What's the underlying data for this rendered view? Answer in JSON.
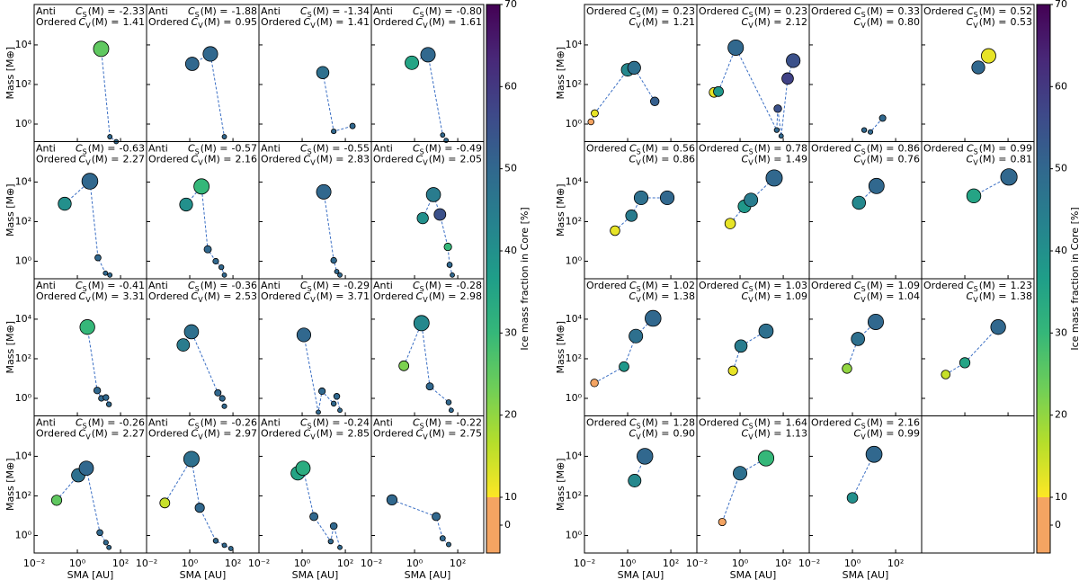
{
  "chart_data": [
    {
      "type": "scatter",
      "xlabel": "SMA [AU]",
      "ylabel": "Mass [M⊕]",
      "xscale": "log",
      "yscale": "log",
      "xlim": [
        0.01,
        1600
      ],
      "ylim": [
        0.13,
        1100000
      ],
      "xticks": [
        {
          "value": 0.01,
          "label": "10⁻²"
        },
        {
          "value": 1,
          "label": "10⁰"
        },
        {
          "value": 100,
          "label": "10²"
        }
      ],
      "yticks": [
        {
          "value": 1,
          "label": "10⁰"
        },
        {
          "value": 100,
          "label": "10²"
        },
        {
          "value": 10000,
          "label": "10⁴"
        }
      ],
      "colorbar_label": "Ice mass fraction in Core [%]",
      "colormap": "viridis_r",
      "clim": [
        -10,
        70
      ],
      "under_threshold": 10,
      "under_color": "#f4a462",
      "cticks": [
        0,
        10,
        20,
        30,
        40,
        50,
        60,
        70
      ],
      "c_symbol": "C",
      "cs_sub": "S",
      "cv_sub": "V",
      "c_arg": "(M) =",
      "panels": [
        {
          "labels": [
            "Anti",
            "Ordered"
          ],
          "cs": -2.33,
          "cv": 1.41,
          "sma": [
            12.6,
            32,
            63
          ],
          "mass": [
            6300,
            0.23,
            0.13
          ],
          "ice": [
            25,
            50,
            50
          ]
        },
        {
          "labels": [
            "Anti",
            "Ordered"
          ],
          "cs": -1.88,
          "cv": 0.95,
          "sma": [
            1.3,
            9,
            40
          ],
          "mass": [
            1100,
            3500,
            0.23
          ],
          "ice": [
            50,
            50,
            50
          ]
        },
        {
          "labels": [
            "Anti",
            "Ordered"
          ],
          "cs": -1.34,
          "cv": 1.41,
          "sma": [
            9,
            29,
            215
          ],
          "mass": [
            400,
            0.43,
            0.8
          ],
          "ice": [
            48,
            50,
            50
          ]
        },
        {
          "labels": [
            "Anti",
            "Ordered"
          ],
          "cs": {
            "value": -0.8,
            "label": "-0.80"
          },
          "cv": 1.61,
          "sma": [
            0.75,
            4.2,
            20,
            29
          ],
          "mass": [
            1250,
            3200,
            0.28,
            0.15
          ],
          "ice": [
            35,
            50,
            50,
            50
          ]
        },
        {
          "labels": [
            "Anti",
            "Ordered"
          ],
          "cs": -0.63,
          "cv": 2.27,
          "sma": [
            0.26,
            3.8,
            9,
            20,
            32
          ],
          "mass": [
            800,
            11000,
            1.5,
            0.25,
            0.2
          ],
          "ice": [
            40,
            50,
            50,
            50,
            50
          ]
        },
        {
          "labels": [
            "Anti",
            "Ordered"
          ],
          "cs": -0.57,
          "cv": 2.16,
          "sma": [
            0.68,
            3.5,
            6.8,
            16,
            29,
            40
          ],
          "mass": [
            730,
            6000,
            4,
            1,
            0.5,
            0.2
          ],
          "ice": [
            40,
            30,
            50,
            50,
            50,
            50
          ]
        },
        {
          "labels": [
            "Anti",
            "Ordered"
          ],
          "cs": -0.55,
          "cv": 2.83,
          "sma": [
            10,
            29,
            40,
            56
          ],
          "mass": [
            3200,
            1.1,
            0.3,
            0.2
          ],
          "ice": [
            50,
            50,
            50,
            50
          ]
        },
        {
          "labels": [
            "Anti",
            "Ordered"
          ],
          "cs": -0.49,
          "cv": 2.05,
          "sma": [
            2.4,
            7.5,
            15,
            35,
            42,
            56
          ],
          "mass": [
            150,
            2300,
            230,
            5.3,
            0.66,
            0.2
          ],
          "ice": [
            40,
            45,
            55,
            30,
            50,
            50
          ]
        },
        {
          "labels": [
            "Anti",
            "Ordered"
          ],
          "cs": -0.41,
          "cv": 3.31,
          "sma": [
            2.9,
            8.3,
            13,
            21,
            29
          ],
          "mass": [
            4000,
            2.5,
            1,
            1.1,
            0.5
          ],
          "ice": [
            30,
            50,
            50,
            50,
            50
          ]
        },
        {
          "labels": [
            "Anti",
            "Ordered"
          ],
          "cs": -0.36,
          "cv": 2.53,
          "sma": [
            0.5,
            1.2,
            20,
            32,
            40
          ],
          "mass": [
            500,
            2300,
            1.9,
            1,
            0.4
          ],
          "ice": [
            45,
            48,
            50,
            50,
            50
          ]
        },
        {
          "labels": [
            "Anti",
            "Ordered"
          ],
          "cs": -0.29,
          "cv": 3.71,
          "sma": [
            1.2,
            5.6,
            8.3,
            29,
            40,
            56
          ],
          "mass": [
            1600,
            0.2,
            2.3,
            0.54,
            1.26,
            0.25
          ],
          "ice": [
            50,
            50,
            50,
            50,
            50,
            50
          ]
        },
        {
          "labels": [
            "Anti",
            "Ordered"
          ],
          "cs": -0.28,
          "cv": 2.98,
          "sma": [
            0.32,
            2.1,
            5.1,
            38,
            50
          ],
          "mass": [
            44,
            6300,
            4,
            0.63,
            0.25
          ],
          "ice": [
            22,
            42,
            50,
            50,
            50
          ]
        },
        {
          "labels": [
            "Anti",
            "Ordered"
          ],
          "cs": -0.26,
          "cv": 2.27,
          "sma": [
            0.11,
            1.1,
            2.6,
            11,
            21,
            29
          ],
          "mass": [
            60,
            1100,
            2500,
            1.4,
            0.44,
            0.25
          ],
          "ice": [
            25,
            48,
            50,
            50,
            50,
            50
          ]
        },
        {
          "labels": [
            "Anti",
            "Ordered"
          ],
          "cs": -0.26,
          "cv": 2.97,
          "sma": [
            0.07,
            1.2,
            2.9,
            16,
            40,
            80
          ],
          "mass": [
            44,
            7300,
            25,
            0.54,
            0.32,
            0.22
          ],
          "ice": [
            15,
            48,
            50,
            50,
            50,
            50
          ]
        },
        {
          "labels": [
            "Anti",
            "Ordered"
          ],
          "cs": -0.24,
          "cv": 2.85,
          "sma": [
            0.63,
            1.1,
            3.5,
            21,
            29,
            56
          ],
          "mass": [
            1400,
            2500,
            9,
            0.5,
            3,
            0.25
          ],
          "ice": [
            35,
            33,
            50,
            50,
            50,
            50
          ]
        },
        {
          "labels": [
            "Anti",
            "Ordered"
          ],
          "cs": -0.22,
          "cv": 2.75,
          "sma": [
            0.09,
            10,
            20,
            38
          ],
          "mass": [
            63,
            9,
            0.72,
            0.35
          ],
          "ice": [
            50,
            50,
            50,
            50
          ]
        }
      ]
    },
    {
      "type": "scatter",
      "xlabel": "SMA [AU]",
      "ylabel": "Mass [M⊕]",
      "xscale": "log",
      "yscale": "log",
      "xlim": [
        0.01,
        1600
      ],
      "ylim": [
        0.13,
        1100000
      ],
      "xticks": [
        {
          "value": 0.01,
          "label": "10⁻²"
        },
        {
          "value": 1,
          "label": "10⁰"
        },
        {
          "value": 100,
          "label": "10²"
        }
      ],
      "yticks": [
        {
          "value": 1,
          "label": "10⁰"
        },
        {
          "value": 100,
          "label": "10²"
        },
        {
          "value": 10000,
          "label": "10⁴"
        }
      ],
      "colorbar_label": "Ice mass fraction in Core [%]",
      "colormap": "viridis_r",
      "clim": [
        -10,
        70
      ],
      "under_threshold": 10,
      "under_color": "#f4a462",
      "cticks": [
        0,
        10,
        20,
        30,
        40,
        50,
        60,
        70
      ],
      "c_symbol": "C",
      "cs_sub": "S",
      "cv_sub": "V",
      "c_arg": "(M) =",
      "panels": [
        {
          "labels": [
            "Ordered"
          ],
          "cs": 0.23,
          "cv": 1.21,
          "sma": [
            0.02,
            0.03,
            1,
            2,
            18
          ],
          "mass": [
            1.3,
            3.5,
            550,
            700,
            14
          ],
          "ice": [
            0,
            12,
            42,
            48,
            52
          ]
        },
        {
          "labels": [
            "Ordered"
          ],
          "cs": 0.23,
          "cv": 2.12,
          "sma": [
            0.063,
            0.1,
            0.63,
            50,
            56,
            80,
            160,
            290
          ],
          "mass": [
            40,
            44,
            7300,
            0.5,
            6,
            0.25,
            200,
            1600
          ],
          "ice": [
            12,
            38,
            50,
            50,
            55,
            50,
            58,
            55
          ]
        },
        {
          "labels": [
            "Ordered"
          ],
          "cs": 0.33,
          "cv": {
            "value": 0.8,
            "label": "0.80"
          },
          "sma": [
            3.5,
            6.8,
            25
          ],
          "mass": [
            0.5,
            0.4,
            2
          ],
          "ice": [
            50,
            50,
            50
          ]
        },
        {
          "labels": [
            "Ordered"
          ],
          "cs": 0.52,
          "cv": 0.53,
          "sma": [
            4.2,
            12.6
          ],
          "mass": [
            730,
            2800
          ],
          "ice": [
            50,
            12
          ]
        },
        {
          "labels": [
            "Ordered"
          ],
          "cs": 0.56,
          "cv": 0.86,
          "sma": [
            0.26,
            1.5,
            4.2,
            68
          ],
          "mass": [
            35,
            200,
            1600,
            1600
          ],
          "ice": [
            12,
            45,
            48,
            50
          ]
        },
        {
          "labels": [
            "Ordered"
          ],
          "cs": 0.78,
          "cv": 1.49,
          "sma": [
            0.35,
            1.6,
            3.2,
            38
          ],
          "mass": [
            80,
            590,
            1250,
            16000
          ],
          "ice": [
            12,
            38,
            45,
            50
          ]
        },
        {
          "labels": [
            "Ordered"
          ],
          "cs": 0.86,
          "cv": 0.76,
          "sma": [
            2,
            13
          ],
          "mass": [
            900,
            6300
          ],
          "ice": [
            42,
            50
          ]
        },
        {
          "labels": [
            "Ordered"
          ],
          "cs": 0.99,
          "cv": 0.81,
          "sma": [
            2.6,
            110
          ],
          "mass": [
            2000,
            18000
          ],
          "ice": [
            35,
            50
          ]
        },
        {
          "labels": [
            "Ordered"
          ],
          "cs": 1.02,
          "cv": 1.38,
          "sma": [
            0.029,
            0.68,
            2.4,
            15
          ],
          "mass": [
            6,
            40,
            1400,
            11000
          ],
          "ice": [
            0,
            38,
            48,
            50
          ]
        },
        {
          "labels": [
            "Ordered"
          ],
          "cs": 1.03,
          "cv": 1.09,
          "sma": [
            0.47,
            1.1,
            16
          ],
          "mass": [
            25,
            440,
            2500
          ],
          "ice": [
            12,
            45,
            48
          ]
        },
        {
          "labels": [
            "Ordered"
          ],
          "cs": 1.09,
          "cv": 1.04,
          "sma": [
            0.56,
            1.8,
            12
          ],
          "mass": [
            32,
            1000,
            7300
          ],
          "ice": [
            20,
            48,
            50
          ]
        },
        {
          "labels": [
            "Ordered"
          ],
          "cs": 1.23,
          "cv": 1.38,
          "sma": [
            0.13,
            1,
            35
          ],
          "mass": [
            16,
            63,
            4000
          ],
          "ice": [
            15,
            35,
            50
          ]
        },
        {
          "labels": [
            "Ordered"
          ],
          "cs": 1.28,
          "cv": {
            "value": 0.9,
            "label": "0.90"
          },
          "sma": [
            2.1,
            6.3
          ],
          "mass": [
            590,
            10000
          ],
          "ice": [
            42,
            50
          ]
        },
        {
          "labels": [
            "Ordered"
          ],
          "cs": 1.64,
          "cv": 1.13,
          "sma": [
            0.15,
            1,
            16
          ],
          "mass": [
            4.8,
            1400,
            8000
          ],
          "ice": [
            0,
            48,
            30
          ]
        },
        {
          "labels": [
            "Ordered"
          ],
          "cs": 2.16,
          "cv": 0.99,
          "sma": [
            1,
            10
          ],
          "mass": [
            80,
            12600
          ],
          "ice": [
            40,
            50
          ]
        }
      ]
    }
  ]
}
